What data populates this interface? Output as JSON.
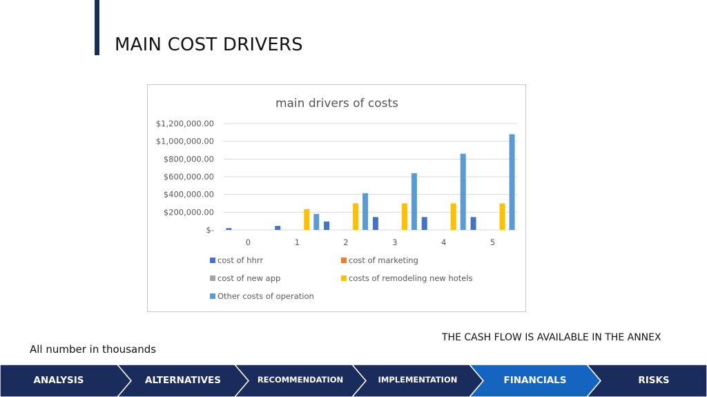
{
  "slide": {
    "title": "MAIN COST DRIVERS",
    "note_left": "All number in thousands",
    "note_right": "THE CASH FLOW IS AVAILABLE IN THE ANNEX",
    "accent_color": "#1a2c5b"
  },
  "nav": {
    "items": [
      {
        "label": "ANALYSIS",
        "active": false
      },
      {
        "label": "ALTERNATIVES",
        "active": false
      },
      {
        "label": "RECOMMENDATION",
        "active": false
      },
      {
        "label": "IMPLEMENTATION",
        "active": false
      },
      {
        "label": "FINANCIALS",
        "active": true
      },
      {
        "label": "RISKS",
        "active": false
      }
    ],
    "bg_color": "#1a2c5b",
    "active_color": "#1565c0"
  },
  "chart_data": {
    "type": "bar",
    "title": "main drivers of costs",
    "categories": [
      "0",
      "1",
      "2",
      "3",
      "4",
      "5"
    ],
    "ylim": [
      0,
      1200000
    ],
    "yticks": [
      0,
      200000,
      400000,
      600000,
      800000,
      1000000,
      1200000
    ],
    "ytick_labels": [
      "$-",
      "$200,000.00",
      "$400,000.00",
      "$600,000.00",
      "$800,000.00",
      "$1,000,000.00",
      "$1,200,000.00"
    ],
    "grid": true,
    "legend_position": "bottom",
    "series": [
      {
        "name": "cost of hhrr",
        "color": "#4472c4",
        "values": [
          20000,
          45000,
          95000,
          145000,
          145000,
          145000
        ]
      },
      {
        "name": "cost of marketing",
        "color": "#ed7d31",
        "values": [
          0,
          0,
          0,
          0,
          0,
          0
        ]
      },
      {
        "name": "cost of new app",
        "color": "#a5a5a5",
        "values": [
          0,
          0,
          0,
          0,
          0,
          0
        ]
      },
      {
        "name": "costs of remodeling new hotels",
        "color": "#ffc000",
        "values": [
          0,
          235000,
          300000,
          300000,
          300000,
          300000
        ]
      },
      {
        "name": "Other costs of operation",
        "color": "#5b9bd5",
        "values": [
          0,
          180000,
          415000,
          640000,
          860000,
          1080000
        ]
      }
    ]
  }
}
